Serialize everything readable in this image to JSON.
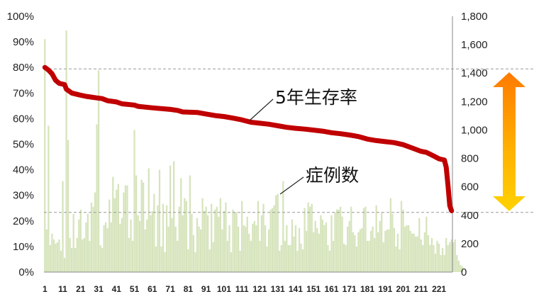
{
  "chart_data": {
    "type": "bar+line",
    "title": "",
    "xlabel": "",
    "ylabel": "",
    "x_tick_labels": [
      "1",
      "11",
      "21",
      "31",
      "41",
      "51",
      "61",
      "71",
      "81",
      "91",
      "101",
      "111",
      "121",
      "131",
      "141",
      "151",
      "161",
      "171",
      "181",
      "191",
      "201",
      "211",
      "221"
    ],
    "x_range": [
      1,
      228
    ],
    "y_left": {
      "range": [
        0,
        100
      ],
      "ticks": [
        "0%",
        "10%",
        "20%",
        "30%",
        "40%",
        "50%",
        "60%",
        "70%",
        "80%",
        "90%",
        "100%"
      ]
    },
    "y_right": {
      "range": [
        0,
        1800
      ],
      "ticks": [
        "0",
        "200",
        "400",
        "600",
        "800",
        "1,000",
        "1,200",
        "1,400",
        "1,600",
        "1,800"
      ]
    },
    "reference_lines_right_axis": [
      1430,
      420
    ],
    "annotations": [
      {
        "text": "5年生存率",
        "series": "survival"
      },
      {
        "text": "症例数",
        "series": "cases"
      }
    ],
    "survival_rate_series": {
      "axis": "left",
      "color": "#c00000",
      "points": [
        [
          1,
          80
        ],
        [
          3,
          79
        ],
        [
          5,
          77.5
        ],
        [
          7,
          75
        ],
        [
          9,
          73.8
        ],
        [
          12,
          73.3
        ],
        [
          13,
          71.5
        ],
        [
          16,
          70
        ],
        [
          20,
          69.3
        ],
        [
          24,
          68.7
        ],
        [
          30,
          68.1
        ],
        [
          33,
          67.8
        ],
        [
          36,
          67
        ],
        [
          41,
          66.5
        ],
        [
          44,
          65.8
        ],
        [
          51,
          65.3
        ],
        [
          53,
          64.8
        ],
        [
          61,
          64.2
        ],
        [
          71,
          63.6
        ],
        [
          75,
          63.2
        ],
        [
          78,
          62.6
        ],
        [
          86,
          62.4
        ],
        [
          91,
          61.8
        ],
        [
          96,
          61.2
        ],
        [
          101,
          60.8
        ],
        [
          106,
          60.2
        ],
        [
          111,
          59.5
        ],
        [
          116,
          58.6
        ],
        [
          121,
          58.2
        ],
        [
          126,
          57.8
        ],
        [
          131,
          57.2
        ],
        [
          136,
          56.6
        ],
        [
          141,
          56.2
        ],
        [
          146,
          55.9
        ],
        [
          151,
          55.5
        ],
        [
          156,
          55.1
        ],
        [
          161,
          54.5
        ],
        [
          166,
          54.1
        ],
        [
          171,
          53.6
        ],
        [
          176,
          53
        ],
        [
          181,
          52
        ],
        [
          186,
          51.4
        ],
        [
          191,
          51
        ],
        [
          196,
          50.6
        ],
        [
          201,
          49.8
        ],
        [
          206,
          48.5
        ],
        [
          211,
          47.2
        ],
        [
          214,
          46.8
        ],
        [
          218,
          45.4
        ],
        [
          221,
          44.3
        ],
        [
          224,
          43.8
        ],
        [
          225,
          41
        ],
        [
          226,
          34
        ],
        [
          227,
          26
        ],
        [
          228,
          24
        ]
      ]
    },
    "case_count_series": {
      "axis": "right",
      "color": "#d6e4bc",
      "values": [
        1640,
        300,
        1030,
        190,
        270,
        230,
        200,
        210,
        230,
        150,
        640,
        100,
        1700,
        930,
        240,
        170,
        410,
        170,
        240,
        370,
        440,
        230,
        240,
        350,
        410,
        220,
        490,
        460,
        560,
        1040,
        1420,
        190,
        170,
        330,
        350,
        310,
        510,
        350,
        670,
        520,
        580,
        620,
        340,
        380,
        560,
        610,
        610,
        240,
        370,
        220,
        1000,
        680,
        400,
        360,
        650,
        630,
        300,
        370,
        730,
        400,
        430,
        550,
        180,
        470,
        720,
        180,
        480,
        140,
        470,
        320,
        750,
        380,
        780,
        320,
        220,
        460,
        660,
        400,
        520,
        500,
        160,
        680,
        410,
        260,
        140,
        380,
        320,
        300,
        520,
        430,
        460,
        400,
        160,
        480,
        210,
        440,
        460,
        390,
        520,
        300,
        430,
        490,
        220,
        330,
        140,
        440,
        420,
        420,
        320,
        150,
        500,
        330,
        320,
        390,
        270,
        220,
        340,
        360,
        330,
        500,
        220,
        400,
        480,
        330,
        180,
        300,
        440,
        450,
        470,
        540,
        550,
        150,
        190,
        640,
        220,
        330,
        190,
        190,
        370,
        250,
        330,
        150,
        310,
        200,
        160,
        450,
        290,
        490,
        460,
        480,
        280,
        360,
        310,
        270,
        400,
        370,
        330,
        350,
        190,
        150,
        400,
        220,
        420,
        440,
        440,
        460,
        390,
        200,
        190,
        320,
        360,
        460,
        280,
        260,
        180,
        280,
        300,
        310,
        450,
        460,
        220,
        220,
        290,
        320,
        240,
        470,
        280,
        360,
        420,
        210,
        290,
        300,
        300,
        520,
        410,
        310,
        180,
        270,
        160,
        500,
        440,
        320,
        330,
        330,
        290,
        270,
        270,
        250,
        250,
        380,
        230,
        190,
        280,
        390,
        260,
        190,
        240,
        190,
        130,
        220,
        200,
        120,
        170,
        120,
        240,
        190,
        210,
        230,
        210,
        230,
        120,
        80,
        50,
        40
      ]
    }
  }
}
